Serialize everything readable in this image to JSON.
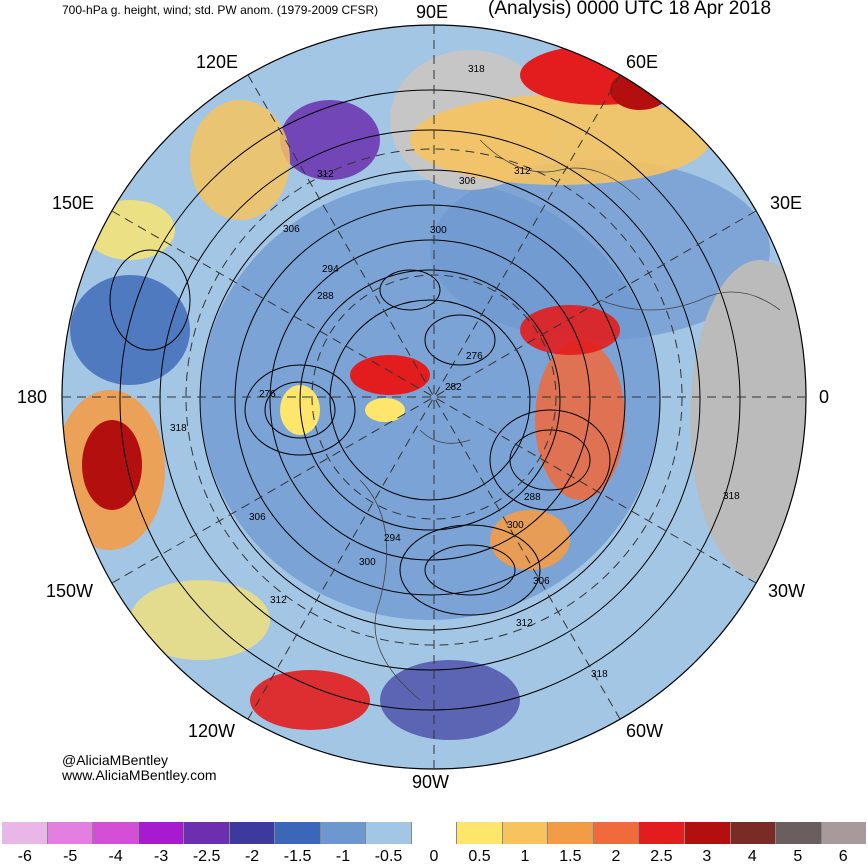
{
  "header": {
    "left_title": "700-hPa g. height, wind; std. PW anom. (1979-2009 CFSR)",
    "right_title": "(Analysis) 0000 UTC 18 Apr 2018"
  },
  "longitude_labels": {
    "lon_90e": "90E",
    "lon_60e": "60E",
    "lon_120e": "120E",
    "lon_150e": "150E",
    "lon_30e": "30E",
    "lon_180": "180",
    "lon_0": "0",
    "lon_150w": "150W",
    "lon_30w": "30W",
    "lon_120w": "120W",
    "lon_60w": "60W",
    "lon_90w": "90W"
  },
  "contour_labels": {
    "c1": "318",
    "c2": "312",
    "c3": "306",
    "c4": "312",
    "c5": "306",
    "c6": "300",
    "c7": "294",
    "c8": "288",
    "c9": "276",
    "c10": "276",
    "c11": "282",
    "c12": "318",
    "c13": "288",
    "c14": "318",
    "c15": "306",
    "c16": "300",
    "c17": "294",
    "c18": "300",
    "c19": "306",
    "c20": "312",
    "c21": "312",
    "c22": "318"
  },
  "credits": {
    "twitter": "@AliciaMBentley",
    "website": "www.AliciaMBentley.com"
  },
  "colorbar": {
    "colors": [
      "#e9b6e8",
      "#e27fe0",
      "#d24fd6",
      "#a81ad0",
      "#6b2fb0",
      "#3d3a9f",
      "#3a67b7",
      "#6d97cf",
      "#a3c6e5",
      "#ffffff",
      "#fde66b",
      "#f6c35e",
      "#f39c48",
      "#f06a3b",
      "#e31d1d",
      "#b30f0f",
      "#7a2b25",
      "#6b5e5e",
      "#a89a9a"
    ],
    "ticks": [
      "-6",
      "-5",
      "-4",
      "-3",
      "-2.5",
      "-2",
      "-1.5",
      "-1",
      "-0.5",
      "0",
      "0.5",
      "1",
      "1.5",
      "2",
      "2.5",
      "3",
      "4",
      "5",
      "6"
    ]
  }
}
